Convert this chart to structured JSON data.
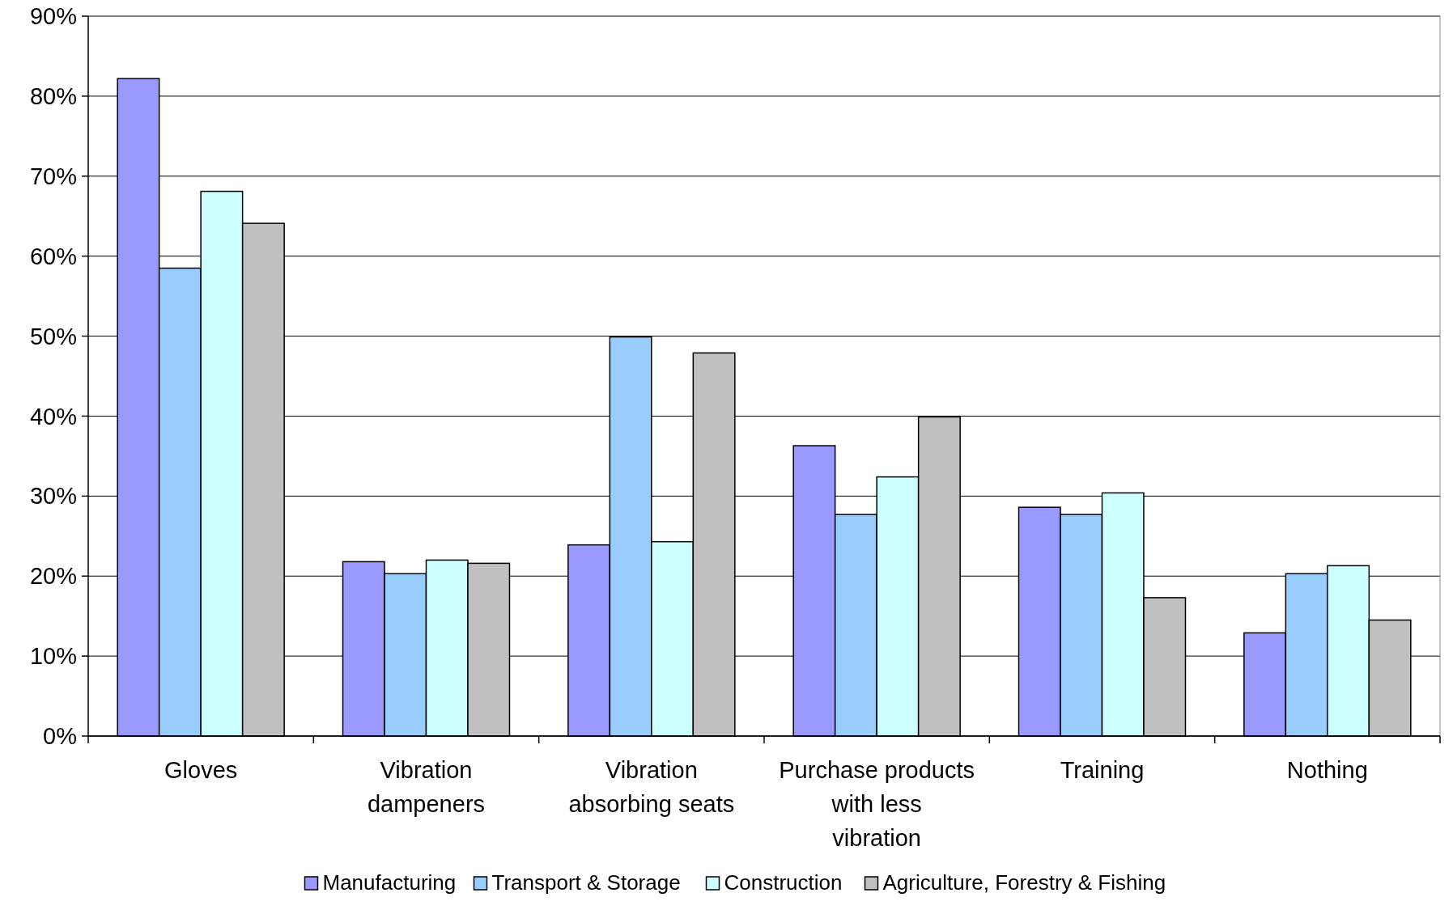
{
  "chart_data": {
    "type": "bar",
    "categories": [
      "Gloves",
      "Vibration dampeners",
      "Vibration absorbing seats",
      "Purchase products with less vibration",
      "Training",
      "Nothing"
    ],
    "series": [
      {
        "name": "Manufacturing",
        "color": "#9999ff",
        "values": [
          82.2,
          21.8,
          23.9,
          36.3,
          28.6,
          12.9
        ]
      },
      {
        "name": "Transport & Storage",
        "color": "#99ccff",
        "values": [
          58.5,
          20.3,
          49.9,
          27.7,
          27.7,
          20.3
        ]
      },
      {
        "name": "Construction",
        "color": "#ccffff",
        "values": [
          68.1,
          22.0,
          24.3,
          32.4,
          30.4,
          21.3
        ]
      },
      {
        "name": "Agriculture, Forestry & Fishing",
        "color": "#c0c0c0",
        "values": [
          64.1,
          21.6,
          47.9,
          39.9,
          17.3,
          14.5
        ]
      }
    ],
    "ylim": [
      0,
      90
    ],
    "yticks": [
      {
        "value": 0,
        "label": "0%"
      },
      {
        "value": 10,
        "label": "10%"
      },
      {
        "value": 20,
        "label": "20%"
      },
      {
        "value": 30,
        "label": "30%"
      },
      {
        "value": 40,
        "label": "40%"
      },
      {
        "value": 50,
        "label": "50%"
      },
      {
        "value": 60,
        "label": "60%"
      },
      {
        "value": 70,
        "label": "70%"
      },
      {
        "value": 80,
        "label": "80%"
      },
      {
        "value": 90,
        "label": "90%"
      }
    ],
    "grid": "y",
    "legend": "bottom"
  }
}
